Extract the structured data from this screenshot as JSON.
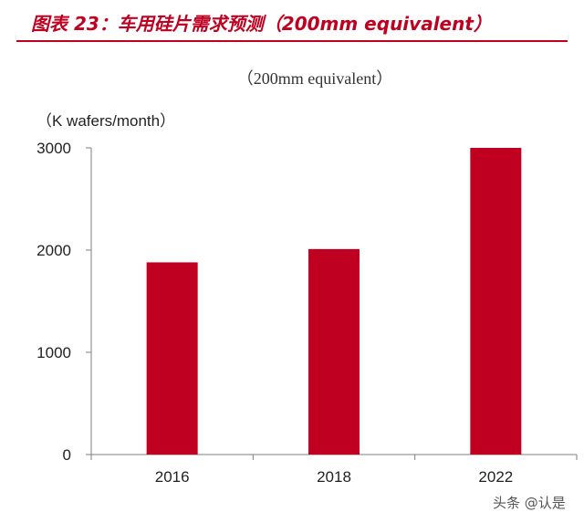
{
  "header": {
    "title": "图表 23：车用硅片需求预测（200mm equivalent）"
  },
  "watermark": "头条 @认是",
  "colors": {
    "accent": "#c00020",
    "bar": "#c00020"
  },
  "chart_data": {
    "type": "bar",
    "title": "（200mm equivalent）",
    "ylabel": "（K wafers/month）",
    "xlabel": "",
    "categories": [
      "2016",
      "2018",
      "2022"
    ],
    "values": [
      1880,
      2010,
      3000
    ],
    "ylim": [
      0,
      3000
    ],
    "yticks": [
      0,
      1000,
      2000,
      3000
    ],
    "grid": false,
    "legend": "none"
  }
}
